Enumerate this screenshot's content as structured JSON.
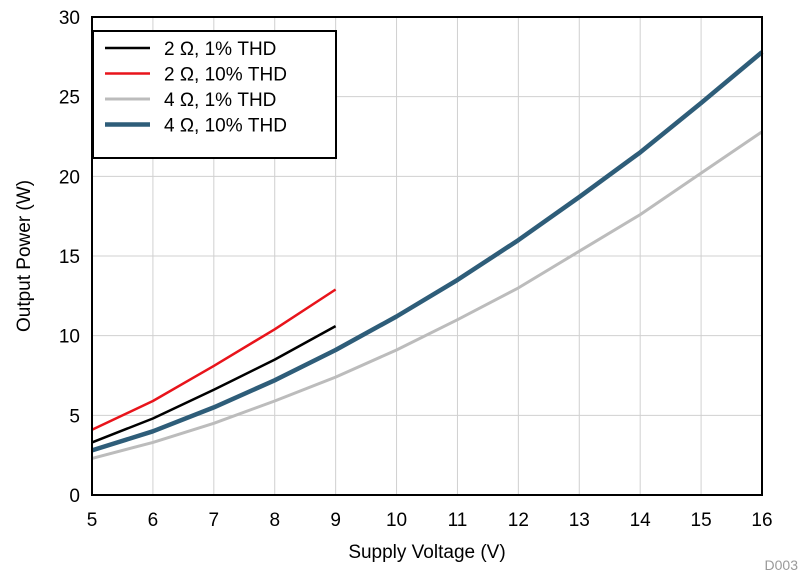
{
  "chart_data": {
    "type": "line",
    "xlabel": "Supply Voltage (V)",
    "ylabel": "Output Power (W)",
    "xlim": [
      5,
      16
    ],
    "ylim": [
      0,
      30
    ],
    "xticks": [
      5,
      6,
      7,
      8,
      9,
      10,
      11,
      12,
      13,
      14,
      15,
      16
    ],
    "yticks": [
      0,
      5,
      10,
      15,
      20,
      25,
      30
    ],
    "grid": true,
    "legend_position": "top-left",
    "figure_id": "D003",
    "series": [
      {
        "name": "2 Ω, 1% THD",
        "color": "#000000",
        "x": [
          5,
          6,
          7,
          8,
          9
        ],
        "y": [
          3.3,
          4.8,
          6.6,
          8.5,
          10.6
        ]
      },
      {
        "name": "2 Ω, 10% THD",
        "color": "#e8141b",
        "x": [
          5,
          6,
          7,
          8,
          9
        ],
        "y": [
          4.1,
          5.9,
          8.1,
          10.4,
          12.9
        ]
      },
      {
        "name": "4 Ω, 1% THD",
        "color": "#bcbcbc",
        "x": [
          5,
          6,
          7,
          8,
          9,
          10,
          11,
          12,
          13,
          14,
          15,
          16
        ],
        "y": [
          2.3,
          3.3,
          4.5,
          5.9,
          7.4,
          9.1,
          11.0,
          13.0,
          15.3,
          17.6,
          20.2,
          22.8
        ]
      },
      {
        "name": "4 Ω, 10% THD",
        "color": "#2e5d79",
        "x": [
          5,
          6,
          7,
          8,
          9,
          10,
          11,
          12,
          13,
          14,
          15,
          16
        ],
        "y": [
          2.8,
          4.0,
          5.5,
          7.2,
          9.1,
          11.2,
          13.5,
          16.0,
          18.7,
          21.5,
          24.6,
          27.8
        ]
      }
    ]
  }
}
